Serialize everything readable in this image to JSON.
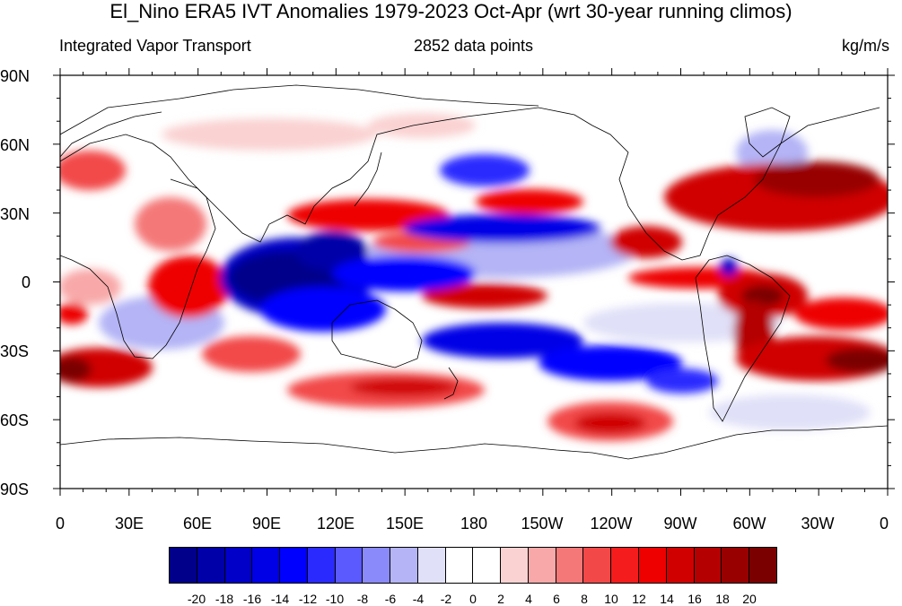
{
  "title": "El_Nino ERA5 IVT Anomalies 1979-2023 Oct-Apr (wrt 30-year running climos)",
  "subtitle_left": "Integrated Vapor Transport",
  "subtitle_center": "2852 data points",
  "subtitle_right": "kg/m/s",
  "lat_labels": [
    "90N",
    "60N",
    "30N",
    "0",
    "30S",
    "60S",
    "90S"
  ],
  "lon_labels": [
    "0",
    "30E",
    "60E",
    "90E",
    "120E",
    "150E",
    "180",
    "150W",
    "120W",
    "90W",
    "60W",
    "30W",
    "0"
  ],
  "colorbar": {
    "labels": [
      "-20",
      "-18",
      "-16",
      "-14",
      "-12",
      "-10",
      "-8",
      "-6",
      "-4",
      "-2",
      "0",
      "2",
      "4",
      "6",
      "8",
      "10",
      "12",
      "14",
      "16",
      "18",
      "20"
    ],
    "colors": [
      "#00008a",
      "#0000a8",
      "#0000c8",
      "#0000e6",
      "#0000ff",
      "#2a2aff",
      "#5a5aff",
      "#8a8afa",
      "#b4b4f6",
      "#e0e0f8",
      "#ffffff",
      "#ffffff",
      "#fad2d2",
      "#f8a8a8",
      "#f47878",
      "#f24848",
      "#f41c1c",
      "#ee0000",
      "#d00000",
      "#b40000",
      "#980000",
      "#7a0000"
    ]
  },
  "map_data": {
    "type": "filled-contour",
    "lon_range": [
      0,
      360
    ],
    "lat_range": [
      -90,
      90
    ],
    "grid": false
  }
}
